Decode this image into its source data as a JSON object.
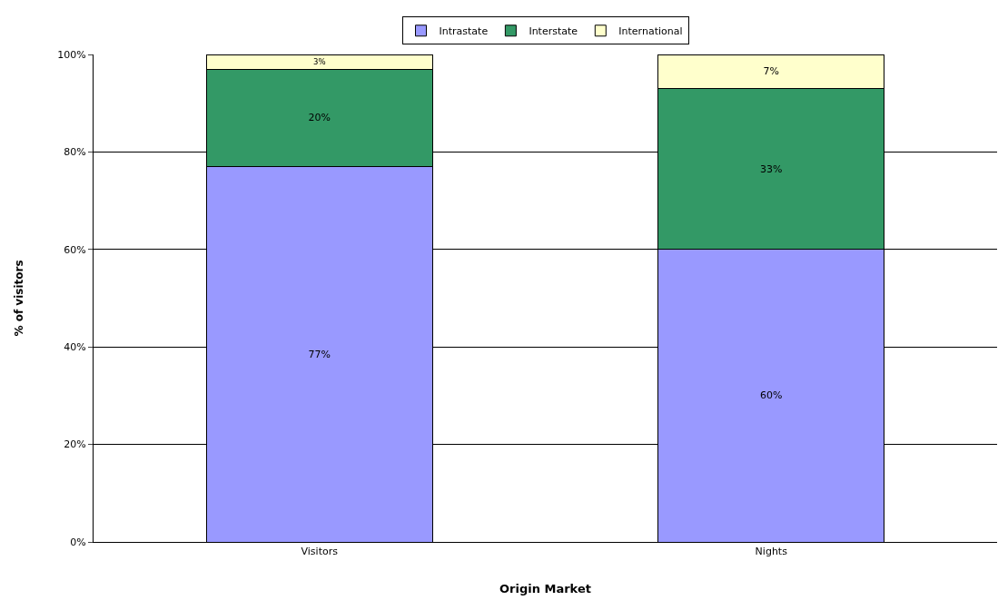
{
  "chart_data": {
    "type": "bar",
    "stacked": true,
    "xlabel": "Origin Market",
    "ylabel": "% of visitors",
    "categories": [
      "Visitors",
      "Nights"
    ],
    "series": [
      {
        "name": "Intrastate",
        "color": "#9999ff",
        "values": [
          77,
          60
        ],
        "value_labels": [
          "77%",
          "60%"
        ]
      },
      {
        "name": "Interstate",
        "color": "#339966",
        "values": [
          20,
          33
        ],
        "value_labels": [
          "20%",
          "33%"
        ]
      },
      {
        "name": "International",
        "color": "#ffffcc",
        "values": [
          3,
          7
        ],
        "value_labels": [
          "3%",
          "7%"
        ]
      }
    ],
    "ylim": [
      0,
      100
    ],
    "yticks": [
      {
        "value": 0,
        "label": "0%"
      },
      {
        "value": 20,
        "label": "20%"
      },
      {
        "value": 40,
        "label": "40%"
      },
      {
        "value": 60,
        "label": "60%"
      },
      {
        "value": 80,
        "label": "80%"
      },
      {
        "value": 100,
        "label": "100%"
      }
    ],
    "grid": "y",
    "legend": "top"
  }
}
